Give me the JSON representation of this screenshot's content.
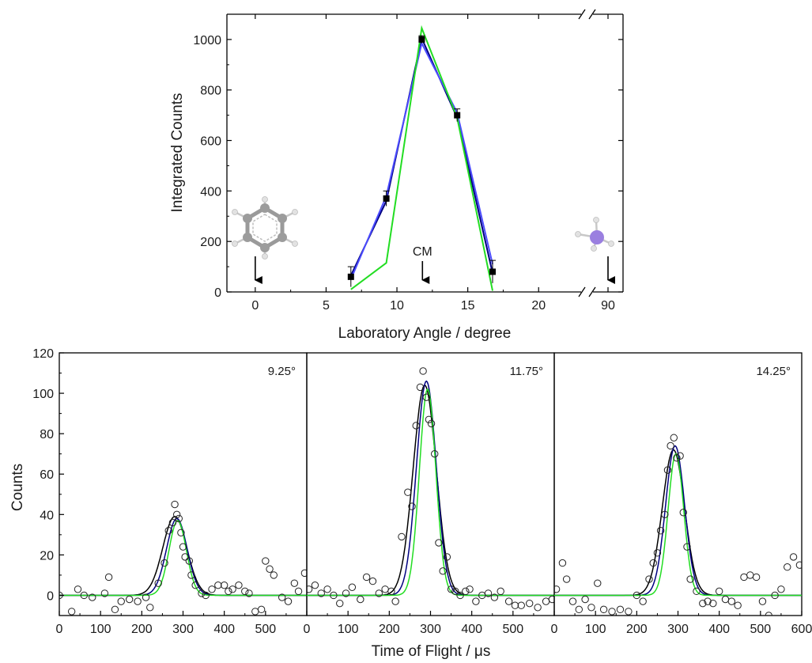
{
  "chart_data": [
    {
      "type": "line",
      "xlabel": "Laboratory Angle / degree",
      "ylabel": "Integrated Counts",
      "xlim": [
        -2,
        23
      ],
      "xlim_broken": [
        88,
        92
      ],
      "ylim": [
        0,
        1100
      ],
      "x_ticks": [
        0,
        5,
        10,
        15,
        20
      ],
      "x_tick_labels": [
        "0",
        "5",
        "10",
        "15",
        "20"
      ],
      "x_tick_broken": [
        90
      ],
      "x_tick_broken_labels": [
        "90"
      ],
      "y_ticks": [
        0,
        200,
        400,
        600,
        800,
        1000
      ],
      "y_tick_labels": [
        "0",
        "200",
        "400",
        "600",
        "800",
        "1000"
      ],
      "annotations": [
        {
          "text": "CM",
          "x": 11.8,
          "arrow": true
        },
        {
          "text": "",
          "x": 0,
          "arrow": true,
          "molecule": "benzene"
        },
        {
          "text": "",
          "x": 90,
          "arrow": true,
          "molecule": "methyl"
        }
      ],
      "points": {
        "x": [
          6.75,
          9.25,
          11.75,
          14.25,
          16.75
        ],
        "y": [
          60,
          370,
          1000,
          700,
          80
        ],
        "err": [
          40,
          30,
          15,
          25,
          45
        ]
      },
      "series": [
        {
          "color": "#000080",
          "x": [
            6.75,
            9.25,
            11.75,
            14.25,
            16.75
          ],
          "values": [
            65,
            360,
            1005,
            690,
            75
          ]
        },
        {
          "color": "#4b4bff",
          "x": [
            6.75,
            9.25,
            11.75,
            14.25,
            16.75
          ],
          "values": [
            50,
            380,
            985,
            710,
            110
          ]
        },
        {
          "color": "#22dd22",
          "x": [
            6.75,
            9.25,
            11.75,
            14.25,
            16.75
          ],
          "values": [
            10,
            115,
            1045,
            690,
            5
          ]
        }
      ]
    },
    {
      "type": "scatter",
      "xlabel": "Time of Flight / μs",
      "ylabel": "Counts",
      "ylim": [
        -10,
        120
      ],
      "y_ticks": [
        0,
        20,
        40,
        60,
        80,
        100,
        120
      ],
      "y_tick_labels": [
        "0",
        "20",
        "40",
        "60",
        "80",
        "100",
        "120"
      ],
      "panels": [
        {
          "angle_label": "9.25°",
          "xlim": [
            0,
            600
          ],
          "x_ticks": [
            0,
            100,
            200,
            300,
            400,
            500
          ],
          "x_tick_labels": [
            "0",
            "100",
            "200",
            "300",
            "400",
            "500"
          ],
          "points_x": [
            0,
            30,
            45,
            60,
            80,
            110,
            120,
            135,
            150,
            170,
            190,
            210,
            220,
            240,
            255,
            265,
            275,
            280,
            285,
            290,
            295,
            300,
            305,
            315,
            320,
            330,
            345,
            355,
            370,
            385,
            400,
            410,
            420,
            435,
            450,
            460,
            475,
            490,
            500,
            510,
            520,
            540,
            555,
            570,
            580,
            595
          ],
          "points_y": [
            0,
            -8,
            3,
            0,
            -1,
            1,
            9,
            -7,
            -3,
            -2,
            -3,
            -1,
            -6,
            6,
            16,
            32,
            36,
            45,
            40,
            38,
            31,
            24,
            19,
            17,
            10,
            5,
            1,
            0,
            3,
            5,
            5,
            2,
            3,
            5,
            2,
            1,
            -8,
            -7,
            17,
            13,
            10,
            -1,
            -3,
            6,
            2,
            11
          ],
          "peak": 282,
          "curves": [
            {
              "color": "#000000",
              "amp": 39,
              "center": 280,
              "width": 29
            },
            {
              "color": "#000080",
              "amp": 38,
              "center": 285,
              "width": 25
            },
            {
              "color": "#22dd22",
              "amp": 37,
              "center": 287,
              "width": 21
            }
          ]
        },
        {
          "angle_label": "11.75°",
          "xlim": [
            0,
            600
          ],
          "x_ticks": [
            0,
            100,
            200,
            300,
            400,
            500
          ],
          "x_tick_labels": [
            "0",
            "100",
            "200",
            "300",
            "400",
            "500"
          ],
          "points_x": [
            5,
            20,
            35,
            50,
            65,
            80,
            95,
            110,
            130,
            145,
            160,
            175,
            190,
            205,
            215,
            230,
            245,
            255,
            265,
            275,
            282,
            290,
            296,
            302,
            310,
            320,
            330,
            340,
            350,
            360,
            372,
            385,
            395,
            410,
            425,
            440,
            455,
            470,
            490,
            505,
            520,
            540,
            560,
            580,
            595
          ],
          "points_y": [
            3,
            5,
            1,
            3,
            0,
            -4,
            1,
            4,
            -2,
            9,
            7,
            1,
            3,
            2,
            -3,
            29,
            51,
            44,
            84,
            103,
            111,
            98,
            87,
            85,
            70,
            26,
            12,
            19,
            3,
            2,
            0,
            2,
            3,
            -3,
            0,
            1,
            -1,
            2,
            -3,
            -5,
            -5,
            -4,
            -6,
            -3,
            -2
          ],
          "peak": 287,
          "curves": [
            {
              "color": "#000000",
              "amp": 104,
              "center": 286,
              "width": 28
            },
            {
              "color": "#000080",
              "amp": 106,
              "center": 290,
              "width": 24
            },
            {
              "color": "#22dd22",
              "amp": 102,
              "center": 293,
              "width": 20
            }
          ]
        },
        {
          "angle_label": "14.25°",
          "xlim": [
            0,
            600
          ],
          "x_ticks": [
            0,
            100,
            200,
            300,
            400,
            500,
            600
          ],
          "x_tick_labels": [
            "0",
            "100",
            "200",
            "300",
            "400",
            "500",
            "600"
          ],
          "points_x": [
            5,
            20,
            30,
            45,
            60,
            75,
            90,
            105,
            120,
            140,
            160,
            180,
            200,
            215,
            230,
            240,
            250,
            258,
            268,
            275,
            282,
            290,
            297,
            305,
            313,
            322,
            330,
            345,
            360,
            372,
            385,
            400,
            415,
            430,
            445,
            460,
            475,
            490,
            505,
            520,
            535,
            550,
            565,
            580,
            595
          ],
          "points_y": [
            3,
            16,
            8,
            -3,
            -7,
            -2,
            -6,
            6,
            -7,
            -8,
            -7,
            -8,
            0,
            -3,
            8,
            16,
            21,
            32,
            40,
            62,
            74,
            78,
            68,
            69,
            41,
            24,
            8,
            2,
            -4,
            -3,
            -4,
            2,
            -2,
            -3,
            -5,
            9,
            10,
            9,
            -3,
            -10,
            0,
            3,
            14,
            19,
            15
          ],
          "peak": 290,
          "curves": [
            {
              "color": "#000000",
              "amp": 72,
              "center": 289,
              "width": 27
            },
            {
              "color": "#000080",
              "amp": 74,
              "center": 293,
              "width": 23
            },
            {
              "color": "#22dd22",
              "amp": 70,
              "center": 295,
              "width": 19
            }
          ]
        }
      ]
    }
  ]
}
